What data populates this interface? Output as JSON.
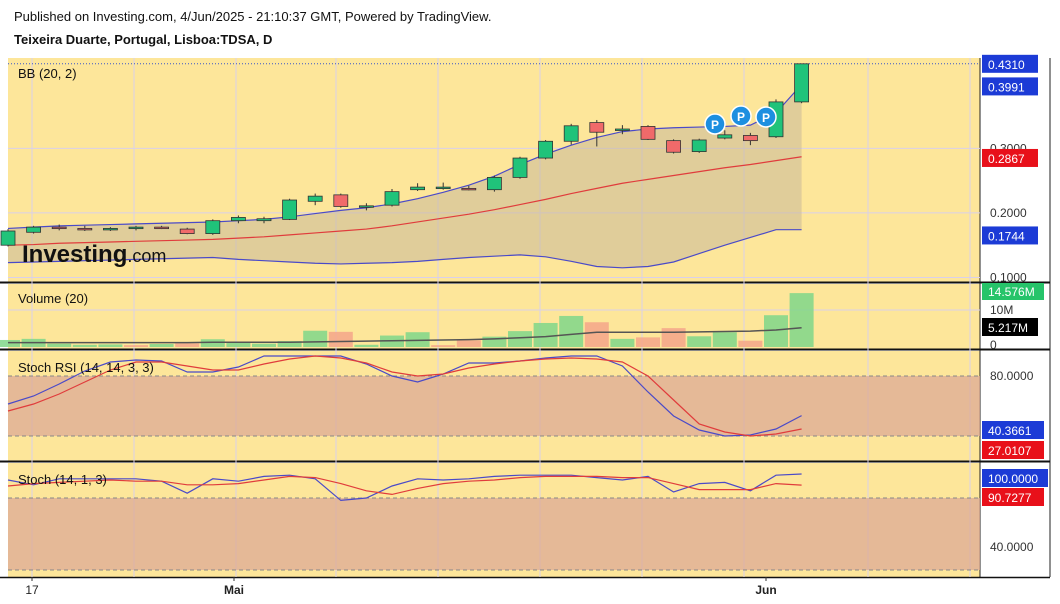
{
  "header": {
    "published": "Published on Investing.com, 4/Jun/2025 - 21:10:37 GMT, Powered by TradingView.",
    "symbol": "Teixeira Duarte, Portugal, Lisboa:TDSA, D"
  },
  "watermark": {
    "brand": "Investing",
    "suffix": ".com"
  },
  "colors": {
    "background": "#fde69a",
    "up": "#20c37a",
    "down": "#f06a6a",
    "bb_band": "#4a4ac8",
    "bb_basis": "#e03c3c",
    "blue_badge": "#1c3bd6",
    "red_badge": "#e8101a",
    "green_badge": "#26c46a",
    "black_badge": "#000000"
  },
  "x_labels": [
    "17",
    "Mai",
    "Jun"
  ],
  "markers": [
    "P",
    "P",
    "P"
  ],
  "chart_data": [
    {
      "type": "candlestick",
      "title": "BB (20, 2)",
      "y_ticks": [
        "0.1000",
        "0.2000",
        "0.3000"
      ],
      "ylim": [
        0.093,
        0.44
      ],
      "candles": [
        {
          "o": 0.15,
          "h": 0.175,
          "l": 0.148,
          "c": 0.172
        },
        {
          "o": 0.17,
          "h": 0.18,
          "l": 0.168,
          "c": 0.178
        },
        {
          "o": 0.178,
          "h": 0.182,
          "l": 0.173,
          "c": 0.176
        },
        {
          "o": 0.176,
          "h": 0.18,
          "l": 0.172,
          "c": 0.174
        },
        {
          "o": 0.174,
          "h": 0.178,
          "l": 0.172,
          "c": 0.176
        },
        {
          "o": 0.176,
          "h": 0.18,
          "l": 0.173,
          "c": 0.178
        },
        {
          "o": 0.178,
          "h": 0.18,
          "l": 0.175,
          "c": 0.176
        },
        {
          "o": 0.175,
          "h": 0.177,
          "l": 0.167,
          "c": 0.168
        },
        {
          "o": 0.168,
          "h": 0.19,
          "l": 0.166,
          "c": 0.188
        },
        {
          "o": 0.188,
          "h": 0.196,
          "l": 0.184,
          "c": 0.193
        },
        {
          "o": 0.188,
          "h": 0.194,
          "l": 0.184,
          "c": 0.191
        },
        {
          "o": 0.19,
          "h": 0.222,
          "l": 0.189,
          "c": 0.22
        },
        {
          "o": 0.218,
          "h": 0.23,
          "l": 0.212,
          "c": 0.226
        },
        {
          "o": 0.228,
          "h": 0.23,
          "l": 0.208,
          "c": 0.21
        },
        {
          "o": 0.21,
          "h": 0.215,
          "l": 0.204,
          "c": 0.211
        },
        {
          "o": 0.212,
          "h": 0.237,
          "l": 0.21,
          "c": 0.233
        },
        {
          "o": 0.236,
          "h": 0.246,
          "l": 0.234,
          "c": 0.24
        },
        {
          "o": 0.238,
          "h": 0.247,
          "l": 0.236,
          "c": 0.24
        },
        {
          "o": 0.238,
          "h": 0.242,
          "l": 0.235,
          "c": 0.236
        },
        {
          "o": 0.236,
          "h": 0.258,
          "l": 0.233,
          "c": 0.255
        },
        {
          "o": 0.255,
          "h": 0.287,
          "l": 0.253,
          "c": 0.285
        },
        {
          "o": 0.285,
          "h": 0.313,
          "l": 0.283,
          "c": 0.311
        },
        {
          "o": 0.311,
          "h": 0.338,
          "l": 0.306,
          "c": 0.335
        },
        {
          "o": 0.34,
          "h": 0.344,
          "l": 0.303,
          "c": 0.325
        },
        {
          "o": 0.328,
          "h": 0.336,
          "l": 0.322,
          "c": 0.33
        },
        {
          "o": 0.334,
          "h": 0.336,
          "l": 0.313,
          "c": 0.314
        },
        {
          "o": 0.312,
          "h": 0.314,
          "l": 0.292,
          "c": 0.294
        },
        {
          "o": 0.295,
          "h": 0.315,
          "l": 0.293,
          "c": 0.313
        },
        {
          "o": 0.316,
          "h": 0.328,
          "l": 0.314,
          "c": 0.321
        },
        {
          "o": 0.32,
          "h": 0.324,
          "l": 0.305,
          "c": 0.312
        },
        {
          "o": 0.318,
          "h": 0.376,
          "l": 0.316,
          "c": 0.372
        },
        {
          "o": 0.372,
          "h": 0.431,
          "l": 0.37,
          "c": 0.431
        }
      ],
      "bb_upper": [
        0.176,
        0.178,
        0.18,
        0.181,
        0.182,
        0.183,
        0.184,
        0.185,
        0.186,
        0.188,
        0.19,
        0.194,
        0.199,
        0.204,
        0.208,
        0.214,
        0.222,
        0.232,
        0.243,
        0.257,
        0.275,
        0.291,
        0.305,
        0.317,
        0.326,
        0.33,
        0.332,
        0.333,
        0.334,
        0.336,
        0.355,
        0.399
      ],
      "bb_basis": [
        0.15,
        0.151,
        0.153,
        0.154,
        0.155,
        0.156,
        0.157,
        0.158,
        0.159,
        0.161,
        0.163,
        0.166,
        0.169,
        0.172,
        0.175,
        0.18,
        0.186,
        0.192,
        0.198,
        0.205,
        0.213,
        0.221,
        0.23,
        0.238,
        0.246,
        0.252,
        0.258,
        0.264,
        0.27,
        0.275,
        0.281,
        0.287
      ],
      "bb_lower": [
        0.123,
        0.124,
        0.125,
        0.126,
        0.127,
        0.128,
        0.129,
        0.13,
        0.131,
        0.128,
        0.126,
        0.124,
        0.122,
        0.121,
        0.122,
        0.123,
        0.125,
        0.128,
        0.131,
        0.133,
        0.135,
        0.132,
        0.125,
        0.117,
        0.115,
        0.117,
        0.124,
        0.137,
        0.15,
        0.162,
        0.174,
        0.174
      ],
      "last_price_label": "0.4310",
      "bb_upper_label": "0.3991",
      "bb_basis_label": "0.2867",
      "bb_lower_label": "0.1744"
    },
    {
      "type": "bar",
      "title": "Volume (20)",
      "y_ticks": [
        "0",
        "10M"
      ],
      "ylim": [
        0,
        16500000
      ],
      "values": [
        1.9,
        2.2,
        0.9,
        0.6,
        0.7,
        0.5,
        0.8,
        1.0,
        2.1,
        1.3,
        0.9,
        1.6,
        4.4,
        4.1,
        0.6,
        3.1,
        4.0,
        0.5,
        1.8,
        2.8,
        4.3,
        6.5,
        8.4,
        6.7,
        2.2,
        2.6,
        5.1,
        2.9,
        4.0,
        1.7,
        8.6,
        14.576
      ],
      "up": [
        true,
        true,
        true,
        true,
        true,
        false,
        true,
        false,
        true,
        true,
        true,
        true,
        true,
        false,
        true,
        true,
        true,
        false,
        false,
        true,
        true,
        true,
        true,
        false,
        true,
        false,
        false,
        true,
        true,
        false,
        true,
        true
      ],
      "ma": [
        1.2,
        1.2,
        1.2,
        1.2,
        1.2,
        1.2,
        1.2,
        1.2,
        1.3,
        1.3,
        1.3,
        1.3,
        1.4,
        1.5,
        1.6,
        1.7,
        1.8,
        1.9,
        2.0,
        2.2,
        2.5,
        2.8,
        3.4,
        4.0,
        4.0,
        4.0,
        4.0,
        4.1,
        4.2,
        4.3,
        4.6,
        5.217
      ],
      "last_value_label": "14.576M",
      "ma_label": "5.217M"
    },
    {
      "type": "line",
      "title": "Stoch RSI (14, 14, 3, 3)",
      "y_ticks": [
        "80.0000"
      ],
      "ylim": [
        -5,
        105
      ],
      "band": [
        20,
        80
      ],
      "series": [
        {
          "values": [
            52,
            60,
            72,
            85,
            94,
            96,
            95,
            84,
            84,
            89,
            100,
            100,
            100,
            100,
            92,
            80,
            74,
            82,
            93,
            93,
            95,
            98,
            100,
            100,
            90,
            64,
            40,
            26,
            20,
            21,
            27,
            40.3661
          ]
        },
        {
          "values": [
            45,
            52,
            62,
            74,
            86,
            94,
            94,
            90,
            86,
            86,
            92,
            97,
            100,
            98,
            93,
            84,
            80,
            82,
            88,
            92,
            95,
            97,
            98,
            97,
            94,
            80,
            56,
            32,
            24,
            20,
            22,
            27.0107
          ]
        }
      ],
      "k_label": "40.3661",
      "d_label": "27.0107"
    },
    {
      "type": "line",
      "title": "Stoch (14, 1, 3)",
      "y_ticks": [
        "40.0000"
      ],
      "ylim": [
        30,
        105
      ],
      "band": [
        40,
        80
      ],
      "series": [
        {
          "values": [
            95,
            91,
            96,
            96,
            96,
            96,
            94,
            84,
            96,
            94,
            98,
            99,
            96,
            78,
            80,
            90,
            96,
            95,
            96,
            98,
            99,
            99,
            99,
            97,
            95,
            98,
            85,
            92,
            93,
            86,
            99,
            100
          ]
        },
        {
          "values": [
            90,
            92,
            93,
            94,
            95,
            94,
            94,
            91,
            91,
            92,
            95,
            98,
            97,
            92,
            86,
            83,
            88,
            92,
            94,
            95,
            97,
            98,
            98,
            98,
            97,
            97,
            92,
            87,
            87,
            87,
            92,
            90.7277
          ]
        }
      ],
      "k_label": "100.0000",
      "d_label": "90.7277"
    }
  ]
}
